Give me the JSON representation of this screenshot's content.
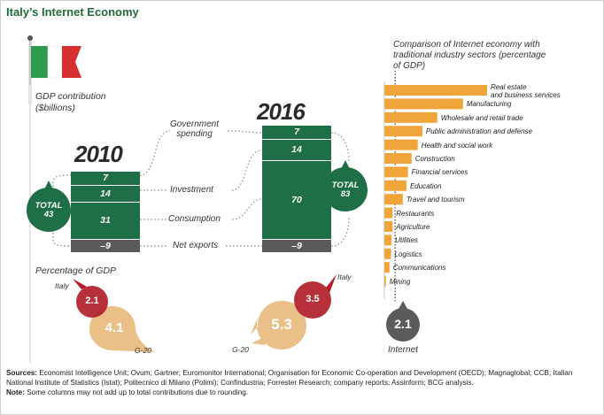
{
  "title": "Italy’s Internet Economy",
  "country": "Italy",
  "gdp_label_line1": "GDP contribution",
  "gdp_label_line2": "($billions)",
  "component_labels": {
    "government_line1": "Government",
    "government_line2": "spending",
    "investment": "Investment",
    "consumption": "Consumption",
    "net_exports": "Net exports"
  },
  "total_labels": {
    "y2010": {
      "word": "TOTAL",
      "value": "43"
    },
    "y2016": {
      "word": "TOTAL",
      "value": "83"
    }
  },
  "pct_gdp": {
    "heading": "Percentage of GDP",
    "italy_label": "Italy",
    "g20_label": "G-20",
    "italy_2010": "2.1",
    "g20_2010": "4.1",
    "italy_2016": "3.5",
    "g20_2016": "5.3"
  },
  "comparison": {
    "heading_line1": "Comparison of Internet economy with",
    "heading_line2": "traditional industry sectors (percentage",
    "heading_line3": "of GDP)",
    "internet_label": "Internet",
    "internet_value": "2.1"
  },
  "chart_data": [
    {
      "type": "bar",
      "title": "GDP contribution ($billions)",
      "categories": [
        "2010",
        "2016"
      ],
      "series": [
        {
          "name": "Government spending",
          "values": [
            7,
            7
          ]
        },
        {
          "name": "Investment",
          "values": [
            14,
            14
          ]
        },
        {
          "name": "Consumption",
          "values": [
            31,
            70
          ]
        },
        {
          "name": "Net exports",
          "values": [
            -9,
            -9
          ]
        }
      ],
      "totals": [
        43,
        83
      ],
      "value_labels": {
        "government": [
          "7",
          "7"
        ],
        "investment": [
          "14",
          "14"
        ],
        "consumption": [
          "31",
          "70"
        ],
        "net_exports": [
          "–9",
          "–9"
        ]
      }
    },
    {
      "type": "bar",
      "orientation": "horizontal",
      "title": "Comparison of Internet economy with traditional industry sectors (percentage of GDP)",
      "categories": [
        "Real estate and business services",
        "Manufacturing",
        "Wholesale and retail trade",
        "Public administration and defense",
        "Health and social work",
        "Construction",
        "Financial services",
        "Education",
        "Travel and tourism",
        "Restaurants",
        "Agriculture",
        "Utilities",
        "Logistics",
        "Communications",
        "Mining"
      ],
      "category_labels": [
        [
          "Real estate",
          "and business services"
        ],
        [
          "Manufacturing"
        ],
        [
          "Wholesale and retail trade"
        ],
        [
          "Public administration and defense"
        ],
        [
          "Health and social work"
        ],
        [
          "Construction"
        ],
        [
          "Financial services"
        ],
        [
          "Education"
        ],
        [
          "Travel and tourism"
        ],
        [
          "Restaurants"
        ],
        [
          "Agriculture"
        ],
        [
          "Utilities"
        ],
        [
          "Logistics"
        ],
        [
          "Communications"
        ],
        [
          "Mining"
        ]
      ],
      "values": [
        20.0,
        15.3,
        10.3,
        7.4,
        6.5,
        5.3,
        4.6,
        4.3,
        3.6,
        1.6,
        1.6,
        1.4,
        1.3,
        1.0,
        0.3
      ],
      "reference": {
        "name": "Internet",
        "value": 2.1
      }
    }
  ],
  "sources": {
    "label": "Sources:",
    "text": "Economist Intelligence Unit; Ovum; Gartner; Euromonitor International; Organisation for Economic Co-operation and Development (OECD); Magnaglobal; CCB; Italian National Institute of Statistics (Istat); Politecnico di Milano (Polimi); Confindustria; Forrester Research; company reports; Assinform; BCG analysis.",
    "note_label": "Note:",
    "note_text": "Some columns may not add up to total contributions due to rounding."
  },
  "colors": {
    "green": "#1e6f45",
    "green_dark": "#16532f",
    "gray_bar": "#5b5b5b",
    "orange": "#f0a53b",
    "red": "#b1202a",
    "tan": "#ebc088",
    "flag_green": "#2e9a4d",
    "flag_red": "#d62f2f",
    "title_green": "#1f6b3a"
  }
}
